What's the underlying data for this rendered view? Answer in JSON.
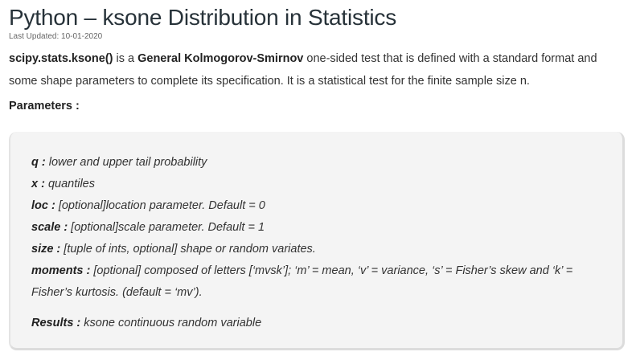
{
  "article": {
    "title": "Python – ksone Distribution in Statistics",
    "last_updated": "Last Updated: 10-01-2020",
    "intro": {
      "code_term": "scipy.stats.ksone()",
      "text_1": " is a ",
      "test_name": "General Kolmogorov-Smirnov",
      "text_2": " one-sided test that is defined with a standard format and some shape parameters to complete its specification. It is a statistical test for the finite sample size n."
    },
    "parameters_heading": "Parameters :",
    "parameters": [
      {
        "name": "q :",
        "desc": " lower and upper tail probability"
      },
      {
        "name": "x :",
        "desc": " quantiles"
      },
      {
        "name": "loc :",
        "desc": " [optional]location parameter. Default = 0"
      },
      {
        "name": "scale :",
        "desc": " [optional]scale parameter. Default = 1"
      },
      {
        "name": "size :",
        "desc": " [tuple of ints, optional] shape or random variates."
      },
      {
        "name": "moments :",
        "desc": " [optional] composed of letters [‘mvsk’]; ‘m’ = mean, ‘v’ = variance, ‘s’ = Fisher’s skew and ‘k’ = Fisher’s kurtosis. (default = ‘mv’)."
      }
    ],
    "results": {
      "name": "Results :",
      "desc": " ksone continuous random variable"
    }
  }
}
